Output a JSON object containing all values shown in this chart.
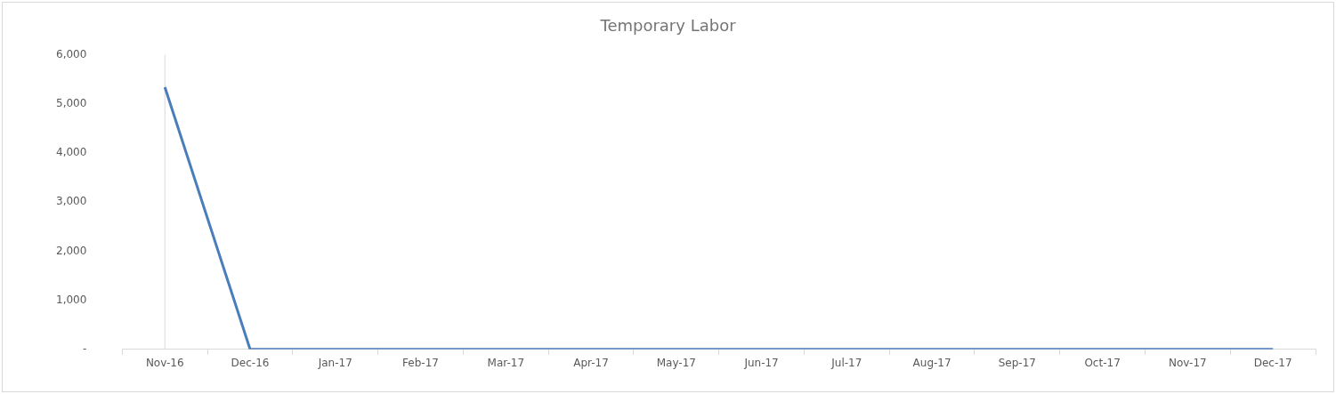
{
  "chart_data": {
    "type": "line",
    "title": "Temporary Labor",
    "categories": [
      "Nov-16",
      "Dec-16",
      "Jan-17",
      "Feb-17",
      "Mar-17",
      "Apr-17",
      "May-17",
      "Jun-17",
      "Jul-17",
      "Aug-17",
      "Sep-17",
      "Oct-17",
      "Nov-17",
      "Dec-17"
    ],
    "series": [
      {
        "color": "#4a7ebb",
        "values": [
          5340,
          0,
          0,
          0,
          0,
          0,
          0,
          0,
          0,
          0,
          0,
          0,
          0,
          0
        ]
      }
    ],
    "ylim": [
      0,
      6000
    ],
    "yticks": [
      {
        "value": 0,
        "label": "-"
      },
      {
        "value": 1000,
        "label": "1,000"
      },
      {
        "value": 2000,
        "label": "2,000"
      },
      {
        "value": 3000,
        "label": "3,000"
      },
      {
        "value": 4000,
        "label": "4,000"
      },
      {
        "value": 5000,
        "label": "5,000"
      },
      {
        "value": 6000,
        "label": "6,000"
      }
    ],
    "ref_lines": [
      {
        "axis": "x",
        "value": "Nov-16",
        "color": "#d9d9d9"
      }
    ],
    "grid": false,
    "legend": false,
    "marker": "none",
    "line_style": "solid"
  }
}
